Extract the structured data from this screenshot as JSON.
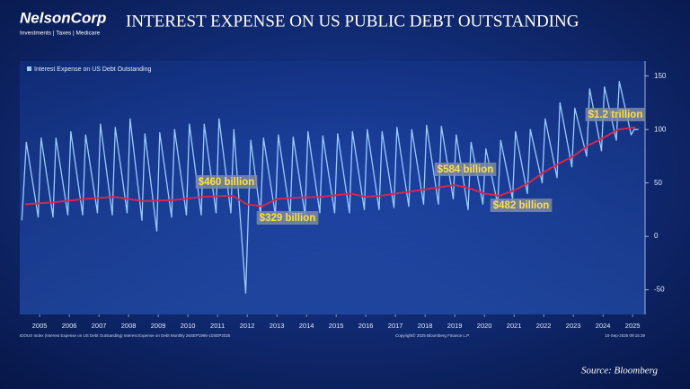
{
  "logo": {
    "name": "NelsonCorp",
    "tagline": "Investments | Taxes | Medicare"
  },
  "source": "Source: Bloomberg",
  "chart_data": {
    "type": "line",
    "title": "INTEREST EXPENSE ON US PUBLIC DEBT OUTSTANDING",
    "legend_position": "upper left",
    "xlim": [
      2004.83,
      2025.92
    ],
    "xticks": [
      {
        "value": 2005.5,
        "label": "2005"
      },
      {
        "value": 2006.5,
        "label": "2006"
      },
      {
        "value": 2007.5,
        "label": "2007"
      },
      {
        "value": 2008.5,
        "label": "2008"
      },
      {
        "value": 2009.5,
        "label": "2009"
      },
      {
        "value": 2010.5,
        "label": "2010"
      },
      {
        "value": 2011.5,
        "label": "2011"
      },
      {
        "value": 2012.5,
        "label": "2012"
      },
      {
        "value": 2013.5,
        "label": "2013"
      },
      {
        "value": 2014.5,
        "label": "2014"
      },
      {
        "value": 2015.5,
        "label": "2015"
      },
      {
        "value": 2016.5,
        "label": "2016"
      },
      {
        "value": 2017.5,
        "label": "2017"
      },
      {
        "value": 2018.5,
        "label": "2018"
      },
      {
        "value": 2019.5,
        "label": "2019"
      },
      {
        "value": 2020.5,
        "label": "2020"
      },
      {
        "value": 2021.5,
        "label": "2021"
      },
      {
        "value": 2022.5,
        "label": "2022"
      },
      {
        "value": 2023.5,
        "label": "2023"
      },
      {
        "value": 2024.5,
        "label": "2024"
      },
      {
        "value": 2025.5,
        "label": "2025"
      }
    ],
    "ylim": [
      -73,
      164
    ],
    "yticks": [
      -50,
      0,
      50,
      100,
      150
    ],
    "series": [
      {
        "name": "Interest Expense on US Debt Outstanding",
        "color": "#9ccaff",
        "x": [
          2004.9,
          2005.05,
          2005.45,
          2005.55,
          2005.95,
          2006.05,
          2006.45,
          2006.55,
          2006.95,
          2007.05,
          2007.45,
          2007.55,
          2007.95,
          2008.05,
          2008.45,
          2008.55,
          2008.95,
          2009.05,
          2009.45,
          2009.55,
          2009.95,
          2010.05,
          2010.45,
          2010.55,
          2010.95,
          2011.05,
          2011.45,
          2011.55,
          2011.95,
          2012.05,
          2012.45,
          2012.62,
          2012.95,
          2013.05,
          2013.45,
          2013.55,
          2013.95,
          2014.05,
          2014.45,
          2014.55,
          2014.95,
          2015.05,
          2015.45,
          2015.55,
          2015.95,
          2016.05,
          2016.45,
          2016.55,
          2016.95,
          2017.05,
          2017.45,
          2017.55,
          2017.95,
          2018.05,
          2018.45,
          2018.55,
          2018.95,
          2019.05,
          2019.45,
          2019.55,
          2019.95,
          2020.05,
          2020.45,
          2020.55,
          2020.95,
          2021.05,
          2021.45,
          2021.55,
          2021.95,
          2022.05,
          2022.45,
          2022.55,
          2022.95,
          2023.05,
          2023.45,
          2023.55,
          2023.95,
          2024.05,
          2024.45,
          2024.55,
          2024.95,
          2025.05,
          2025.45,
          2025.55,
          2025.7
        ],
        "values": [
          15,
          88,
          18,
          92,
          18,
          92,
          20,
          98,
          20,
          95,
          22,
          105,
          20,
          102,
          22,
          110,
          15,
          96,
          5,
          97,
          18,
          100,
          20,
          105,
          20,
          105,
          22,
          110,
          22,
          100,
          -53,
          90,
          20,
          92,
          20,
          95,
          20,
          93,
          20,
          98,
          22,
          94,
          22,
          96,
          22,
          98,
          25,
          100,
          25,
          98,
          27,
          102,
          28,
          100,
          30,
          104,
          30,
          103,
          35,
          95,
          25,
          88,
          30,
          82,
          30,
          90,
          35,
          98,
          40,
          100,
          50,
          110,
          55,
          125,
          65,
          120,
          75,
          138,
          80,
          140,
          90,
          145,
          95,
          100,
          100
        ]
      },
      {
        "color": "#d6264f",
        "x": [
          2005,
          2006,
          2007,
          2008,
          2009,
          2010,
          2011,
          2012,
          2012.5,
          2013,
          2013.5,
          2014,
          2015,
          2016,
          2016.5,
          2017,
          2018,
          2019,
          2019.5,
          2020,
          2020.5,
          2021,
          2021.5,
          2022,
          2022.5,
          2023,
          2023.5,
          2024,
          2024.5,
          2025,
          2025.6
        ],
        "values": [
          30,
          32,
          35,
          37,
          33,
          34,
          37,
          38,
          30,
          28,
          35,
          36,
          37,
          40,
          37,
          38,
          42,
          46,
          48,
          45,
          40,
          38,
          43,
          50,
          60,
          68,
          75,
          85,
          92,
          100,
          102
        ]
      }
    ],
    "annotations": [
      "$460 billion",
      "$329 billion",
      "$584 billion",
      "$482 billion",
      "$1.2 trillion"
    ],
    "footer": [
      "IDOUS Index (Interest Expense on US Debt Outstanding) Interest Expense on Debt Monthly 26SEP1995-10SEP2025",
      "Copyright© 2025 Bloomberg Finance L.P.",
      "10-Sep-2025 09:15:39"
    ]
  }
}
